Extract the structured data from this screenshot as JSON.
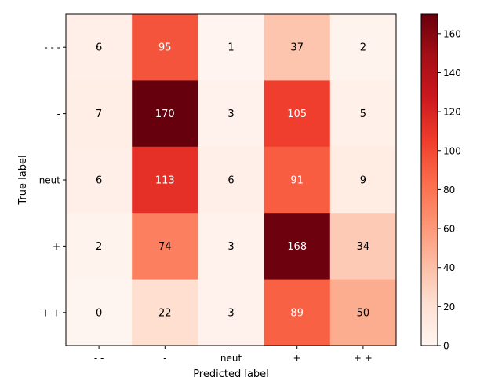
{
  "chart_data": {
    "type": "heatmap",
    "title": "",
    "xlabel": "Predicted label",
    "ylabel": "True label",
    "x_categories": [
      "- -",
      "-",
      "neut",
      "+",
      "+ +"
    ],
    "y_categories": [
      "- - -",
      "-",
      "neut",
      "+",
      "+ +"
    ],
    "matrix": [
      [
        6,
        95,
        1,
        37,
        2
      ],
      [
        7,
        170,
        3,
        105,
        5
      ],
      [
        6,
        113,
        6,
        91,
        9
      ],
      [
        2,
        74,
        3,
        168,
        34
      ],
      [
        0,
        22,
        3,
        89,
        50
      ]
    ],
    "value_range": [
      0,
      170
    ],
    "colormap": "Reds",
    "colorbar": {
      "ticks": [
        0,
        20,
        40,
        60,
        80,
        100,
        120,
        140,
        160
      ],
      "tick_labels": [
        "0",
        "20",
        "40",
        "60",
        "80",
        "100",
        "120",
        "140",
        "160"
      ]
    },
    "grid": false
  }
}
